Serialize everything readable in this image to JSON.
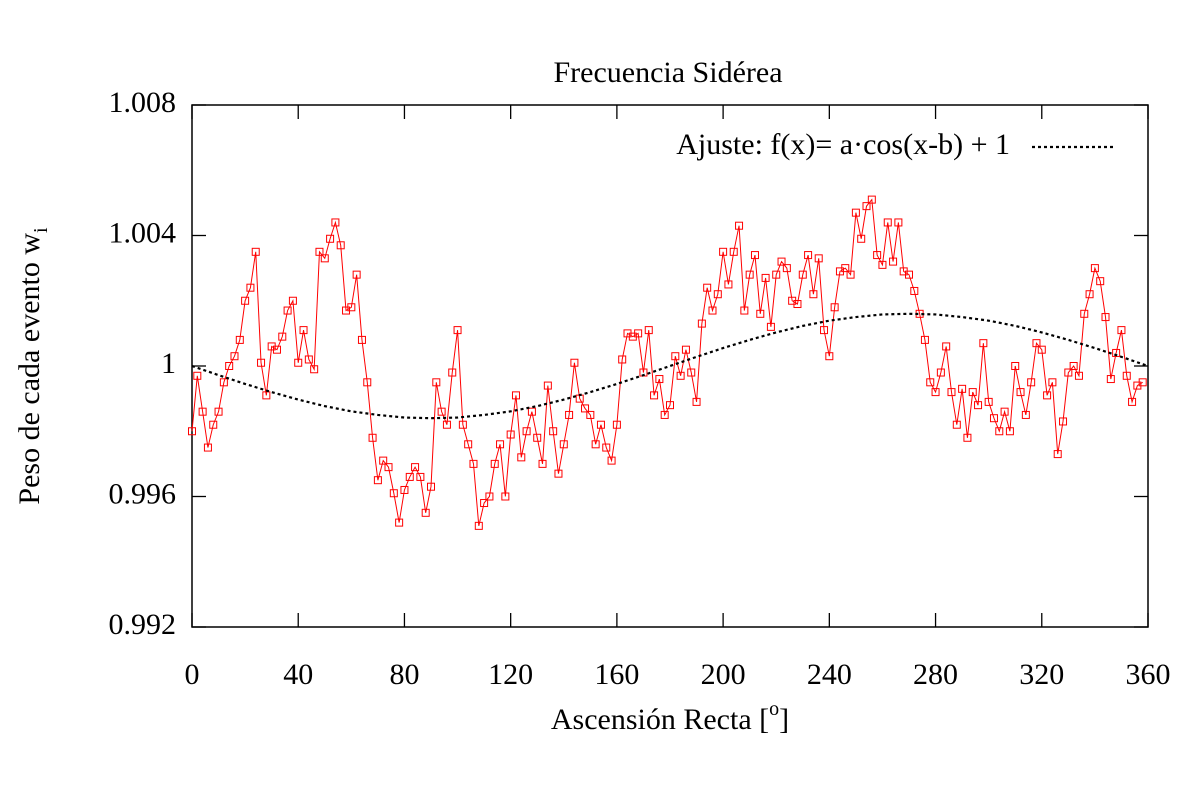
{
  "chart_data": {
    "type": "line",
    "title": "Frecuencia Sidérea",
    "xlabel": "Ascensión Recta [",
    "xlabel_sup": "o",
    "xlabel_end": "]",
    "ylabel": "Peso de cada evento w",
    "ylabel_sub": "i",
    "xlim": [
      0,
      360
    ],
    "xticks": [
      0,
      40,
      80,
      120,
      160,
      200,
      240,
      280,
      320,
      360
    ],
    "ylim": [
      0.992,
      1.008
    ],
    "yticks": [
      0.992,
      0.996,
      1,
      1.004,
      1.008
    ],
    "grid": false,
    "legend": "top-right",
    "series": [
      {
        "color": "#ff0000",
        "marker": "square",
        "dash": "solid",
        "x": [
          0,
          2,
          4,
          6,
          8,
          10,
          12,
          14,
          16,
          18,
          20,
          22,
          24,
          26,
          28,
          30,
          32,
          34,
          36,
          38,
          40,
          42,
          44,
          46,
          48,
          50,
          52,
          54,
          56,
          58,
          60,
          62,
          64,
          66,
          68,
          70,
          72,
          74,
          76,
          78,
          80,
          82,
          84,
          86,
          88,
          90,
          92,
          94,
          96,
          98,
          100,
          102,
          104,
          106,
          108,
          110,
          112,
          114,
          116,
          118,
          120,
          122,
          124,
          126,
          128,
          130,
          132,
          134,
          136,
          138,
          140,
          142,
          144,
          146,
          148,
          150,
          152,
          154,
          156,
          158,
          160,
          162,
          164,
          166,
          168,
          170,
          172,
          174,
          176,
          178,
          180,
          182,
          184,
          186,
          188,
          190,
          192,
          194,
          196,
          198,
          200,
          202,
          204,
          206,
          208,
          210,
          212,
          214,
          216,
          218,
          220,
          222,
          224,
          226,
          228,
          230,
          232,
          234,
          236,
          238,
          240,
          242,
          244,
          246,
          248,
          250,
          252,
          254,
          256,
          258,
          260,
          262,
          264,
          266,
          268,
          270,
          272,
          274,
          276,
          278,
          280,
          282,
          284,
          286,
          288,
          290,
          292,
          294,
          296,
          298,
          300,
          302,
          304,
          306,
          308,
          310,
          312,
          314,
          316,
          318,
          320,
          322,
          324,
          326,
          328,
          330,
          332,
          334,
          336,
          338,
          340,
          342,
          344,
          346,
          348,
          350,
          352,
          354,
          356,
          358
        ],
        "values": [
          0.998,
          0.9997,
          0.9986,
          0.9975,
          0.9982,
          0.9986,
          0.9995,
          1.0,
          1.0003,
          1.0008,
          1.002,
          1.0024,
          1.0035,
          1.0001,
          0.9991,
          1.0006,
          1.0005,
          1.0009,
          1.0017,
          1.002,
          1.0001,
          1.0011,
          1.0002,
          0.9999,
          1.0035,
          1.0033,
          1.0039,
          1.0044,
          1.0037,
          1.0017,
          1.0018,
          1.0028,
          1.0008,
          0.9995,
          0.9978,
          0.9965,
          0.9971,
          0.9969,
          0.9961,
          0.9952,
          0.9962,
          0.9966,
          0.9969,
          0.9966,
          0.9955,
          0.9963,
          0.9995,
          0.9986,
          0.9982,
          0.9998,
          1.0011,
          0.9982,
          0.9976,
          0.997,
          0.9951,
          0.9958,
          0.996,
          0.997,
          0.9976,
          0.996,
          0.9979,
          0.9991,
          0.9972,
          0.998,
          0.9986,
          0.9978,
          0.997,
          0.9994,
          0.998,
          0.9967,
          0.9976,
          0.9985,
          1.0001,
          0.999,
          0.9987,
          0.9985,
          0.9976,
          0.9982,
          0.9975,
          0.9971,
          0.9982,
          1.0002,
          1.001,
          1.0009,
          1.001,
          0.9998,
          1.0011,
          0.9991,
          0.9996,
          0.9985,
          0.9988,
          1.0003,
          0.9997,
          1.0005,
          0.9998,
          0.9989,
          1.0013,
          1.0024,
          1.0017,
          1.0022,
          1.0035,
          1.0025,
          1.0035,
          1.0043,
          1.0017,
          1.0028,
          1.0034,
          1.0016,
          1.0027,
          1.0012,
          1.0028,
          1.0032,
          1.003,
          1.002,
          1.0019,
          1.0028,
          1.0034,
          1.0022,
          1.0033,
          1.0011,
          1.0003,
          1.0018,
          1.0029,
          1.003,
          1.0028,
          1.0047,
          1.0039,
          1.0049,
          1.0051,
          1.0034,
          1.0031,
          1.0044,
          1.0032,
          1.0044,
          1.0029,
          1.0028,
          1.0023,
          1.0016,
          1.0008,
          0.9995,
          0.9992,
          0.9998,
          1.0006,
          0.9992,
          0.9982,
          0.9993,
          0.9978,
          0.9992,
          0.9988,
          1.0007,
          0.9989,
          0.9984,
          0.998,
          0.9986,
          0.998,
          1.0,
          0.9992,
          0.9985,
          0.9995,
          1.0007,
          1.0005,
          0.9991,
          0.9995,
          0.9973,
          0.9983,
          0.9998,
          1.0,
          0.9997,
          1.0016,
          1.0022,
          1.003,
          1.0026,
          1.0015,
          0.9996,
          1.0004,
          1.0011,
          0.9997,
          0.9989,
          0.9994,
          0.9995
        ]
      },
      {
        "name": "Ajuste: f(x)= a·cos(x-b) + 1",
        "color": "#000000",
        "marker": "none",
        "dash": "dotted",
        "x": [
          0,
          10,
          20,
          30,
          40,
          50,
          60,
          70,
          80,
          90,
          100,
          110,
          120,
          130,
          140,
          150,
          160,
          170,
          180,
          190,
          200,
          210,
          220,
          230,
          240,
          250,
          260,
          270,
          280,
          290,
          300,
          310,
          320,
          330,
          340,
          350,
          360
        ],
        "values": [
          1.0,
          0.99972,
          0.99945,
          0.9992,
          0.99897,
          0.99877,
          0.99861,
          0.9985,
          0.99842,
          0.9984,
          0.99842,
          0.9985,
          0.99861,
          0.99877,
          0.99897,
          0.9992,
          0.99945,
          0.99972,
          1.0,
          1.00028,
          1.00055,
          1.0008,
          1.00103,
          1.00123,
          1.00139,
          1.0015,
          1.00158,
          1.0016,
          1.00158,
          1.0015,
          1.00139,
          1.00123,
          1.00103,
          1.0008,
          1.00055,
          1.00028,
          1.0
        ]
      }
    ]
  }
}
